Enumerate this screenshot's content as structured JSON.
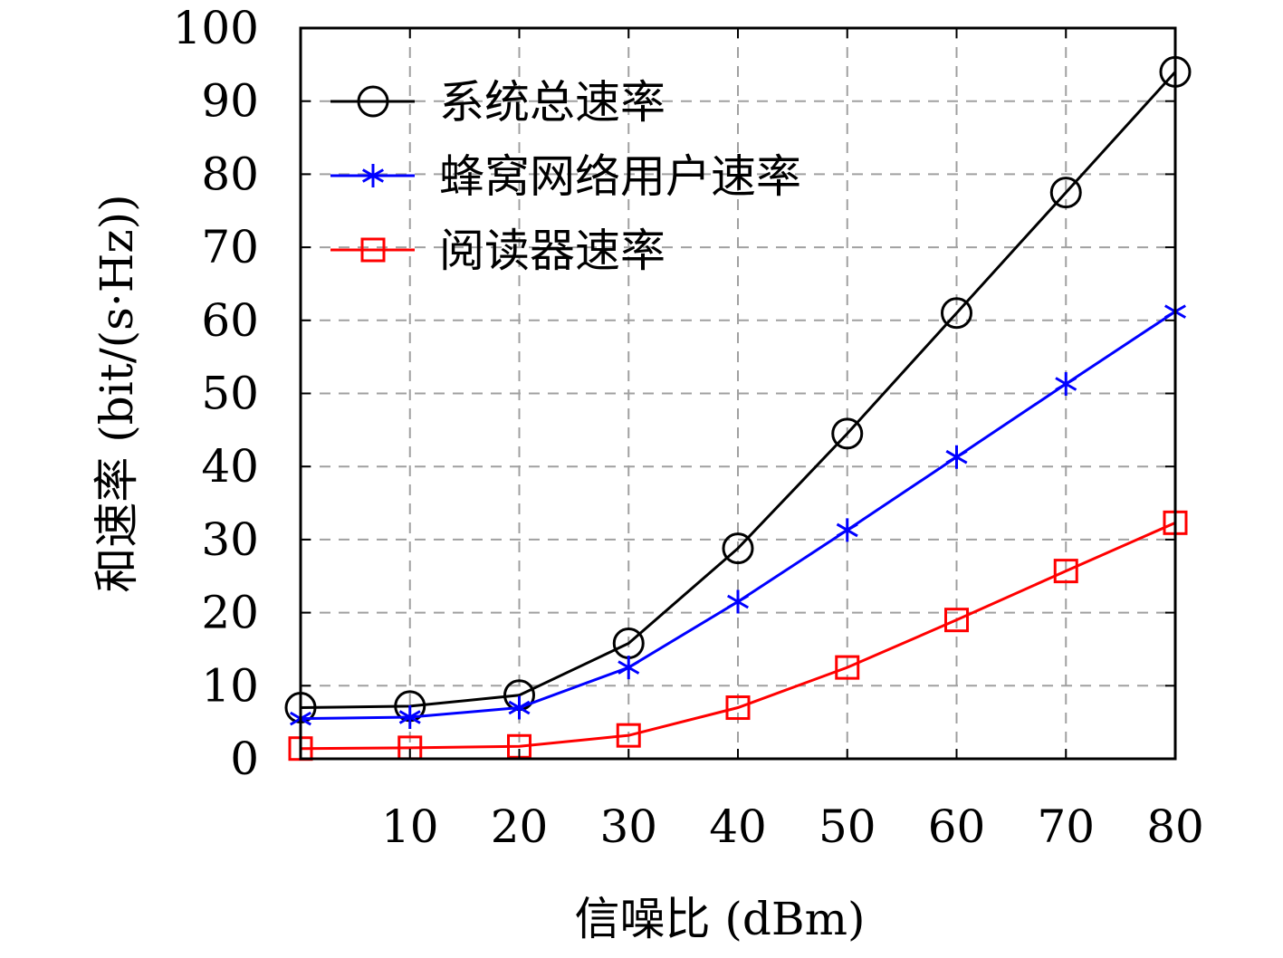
{
  "chart_data": {
    "type": "line",
    "xlabel": "信噪比 (dBm)",
    "ylabel": "和速率 (bit/(s·Hz))",
    "x": [
      0,
      10,
      20,
      30,
      40,
      50,
      60,
      70,
      80
    ],
    "xticks": [
      10,
      20,
      30,
      40,
      50,
      60,
      70,
      80
    ],
    "yticks": [
      0,
      10,
      20,
      30,
      40,
      50,
      60,
      70,
      80,
      90,
      100
    ],
    "xlim": [
      0,
      80
    ],
    "ylim": [
      0,
      100
    ],
    "grid": true,
    "legend_position": "top-left",
    "series": [
      {
        "name": "系统总速率",
        "color": "#000000",
        "marker": "circle",
        "values": [
          7.0,
          7.2,
          8.7,
          15.8,
          28.8,
          44.5,
          61.0,
          77.5,
          94.0
        ]
      },
      {
        "name": "蜂窝网络用户速率",
        "color": "#0000ff",
        "marker": "asterisk",
        "values": [
          5.5,
          5.7,
          7.0,
          12.5,
          21.5,
          31.3,
          41.3,
          51.3,
          61.2
        ]
      },
      {
        "name": "阅读器速率",
        "color": "#ff0000",
        "marker": "square",
        "values": [
          1.4,
          1.5,
          1.7,
          3.2,
          7.0,
          12.5,
          19.0,
          25.7,
          32.3
        ]
      }
    ]
  }
}
